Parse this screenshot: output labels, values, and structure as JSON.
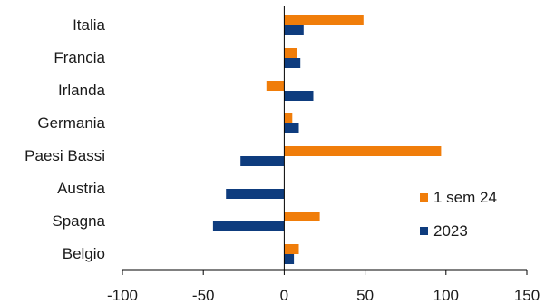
{
  "chart_data": {
    "type": "bar",
    "orientation": "horizontal",
    "categories": [
      "Italia",
      "Francia",
      "Irlanda",
      "Germania",
      "Paesi Bassi",
      "Austria",
      "Spagna",
      "Belgio"
    ],
    "series": [
      {
        "name": "1 sem 24",
        "color": "#F07D0A",
        "values": [
          49,
          8,
          -11,
          5,
          97,
          0,
          22,
          9
        ]
      },
      {
        "name": "2023",
        "color": "#0E3C7E",
        "values": [
          12,
          10,
          18,
          9,
          -27,
          -36,
          -44,
          6
        ]
      }
    ],
    "xlim": [
      -100,
      150
    ],
    "xticks": [
      -100,
      -50,
      0,
      50,
      100,
      150
    ],
    "xtick_labels": [
      "-100",
      "-50",
      "0",
      "50",
      "100",
      "150"
    ],
    "title": "",
    "xlabel": "",
    "ylabel": "",
    "grid": false,
    "legend_position": "lower-right"
  }
}
